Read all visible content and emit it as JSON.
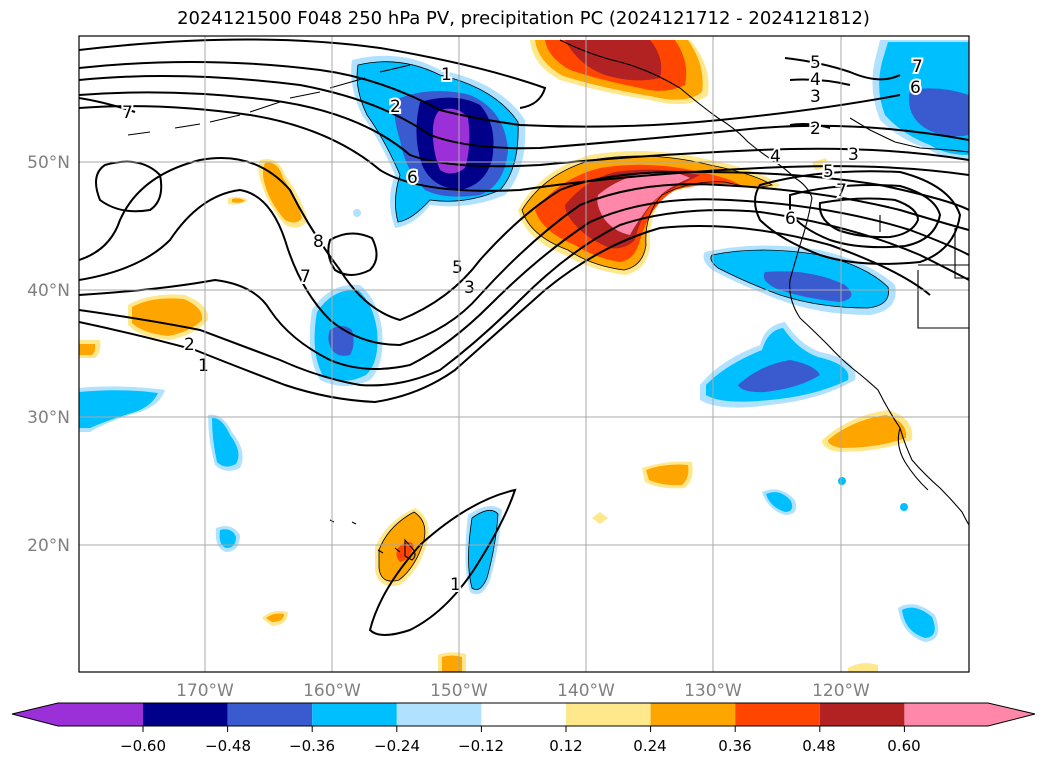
{
  "title": "2024121500 F048 250 hPa PV, precipitation PC (2024121712 - 2024121812)",
  "lat_labels": [
    "50°N",
    "40°N",
    "30°N",
    "20°N"
  ],
  "lon_labels": [
    "170°W",
    "160°W",
    "150°W",
    "140°W",
    "130°W",
    "120°W"
  ],
  "contour_labels": [
    "1",
    "2",
    "6",
    "7",
    "8",
    "7",
    "5",
    "3",
    "2",
    "1",
    "1",
    "7",
    "6",
    "5",
    "4",
    "3",
    "2",
    "4",
    "3",
    "5",
    "7",
    "6"
  ],
  "colorbar": {
    "tick_labels": [
      "−0.60",
      "−0.48",
      "−0.36",
      "−0.24",
      "−0.12",
      "0.12",
      "0.24",
      "0.36",
      "0.48",
      "0.60"
    ],
    "colors": [
      "#9b30d8",
      "#00008b",
      "#3a5bd0",
      "#00bfff",
      "#b0e2ff",
      "#ffffff",
      "#ffe88c",
      "#ffa500",
      "#ff4500",
      "#b22222",
      "#ff88aa",
      "#ff88aa"
    ]
  },
  "fill_colors": {
    "neg_light": "#b0e2ff",
    "neg_mid": "#00bfff",
    "neg_strong": "#3a5bd0",
    "neg_deep": "#00008b",
    "neg_max": "#9b30d8",
    "pos_light": "#ffe88c",
    "pos_mid": "#ffa500",
    "pos_strong": "#ff4500",
    "pos_deep": "#b22222",
    "pos_max": "#ff88aa"
  }
}
